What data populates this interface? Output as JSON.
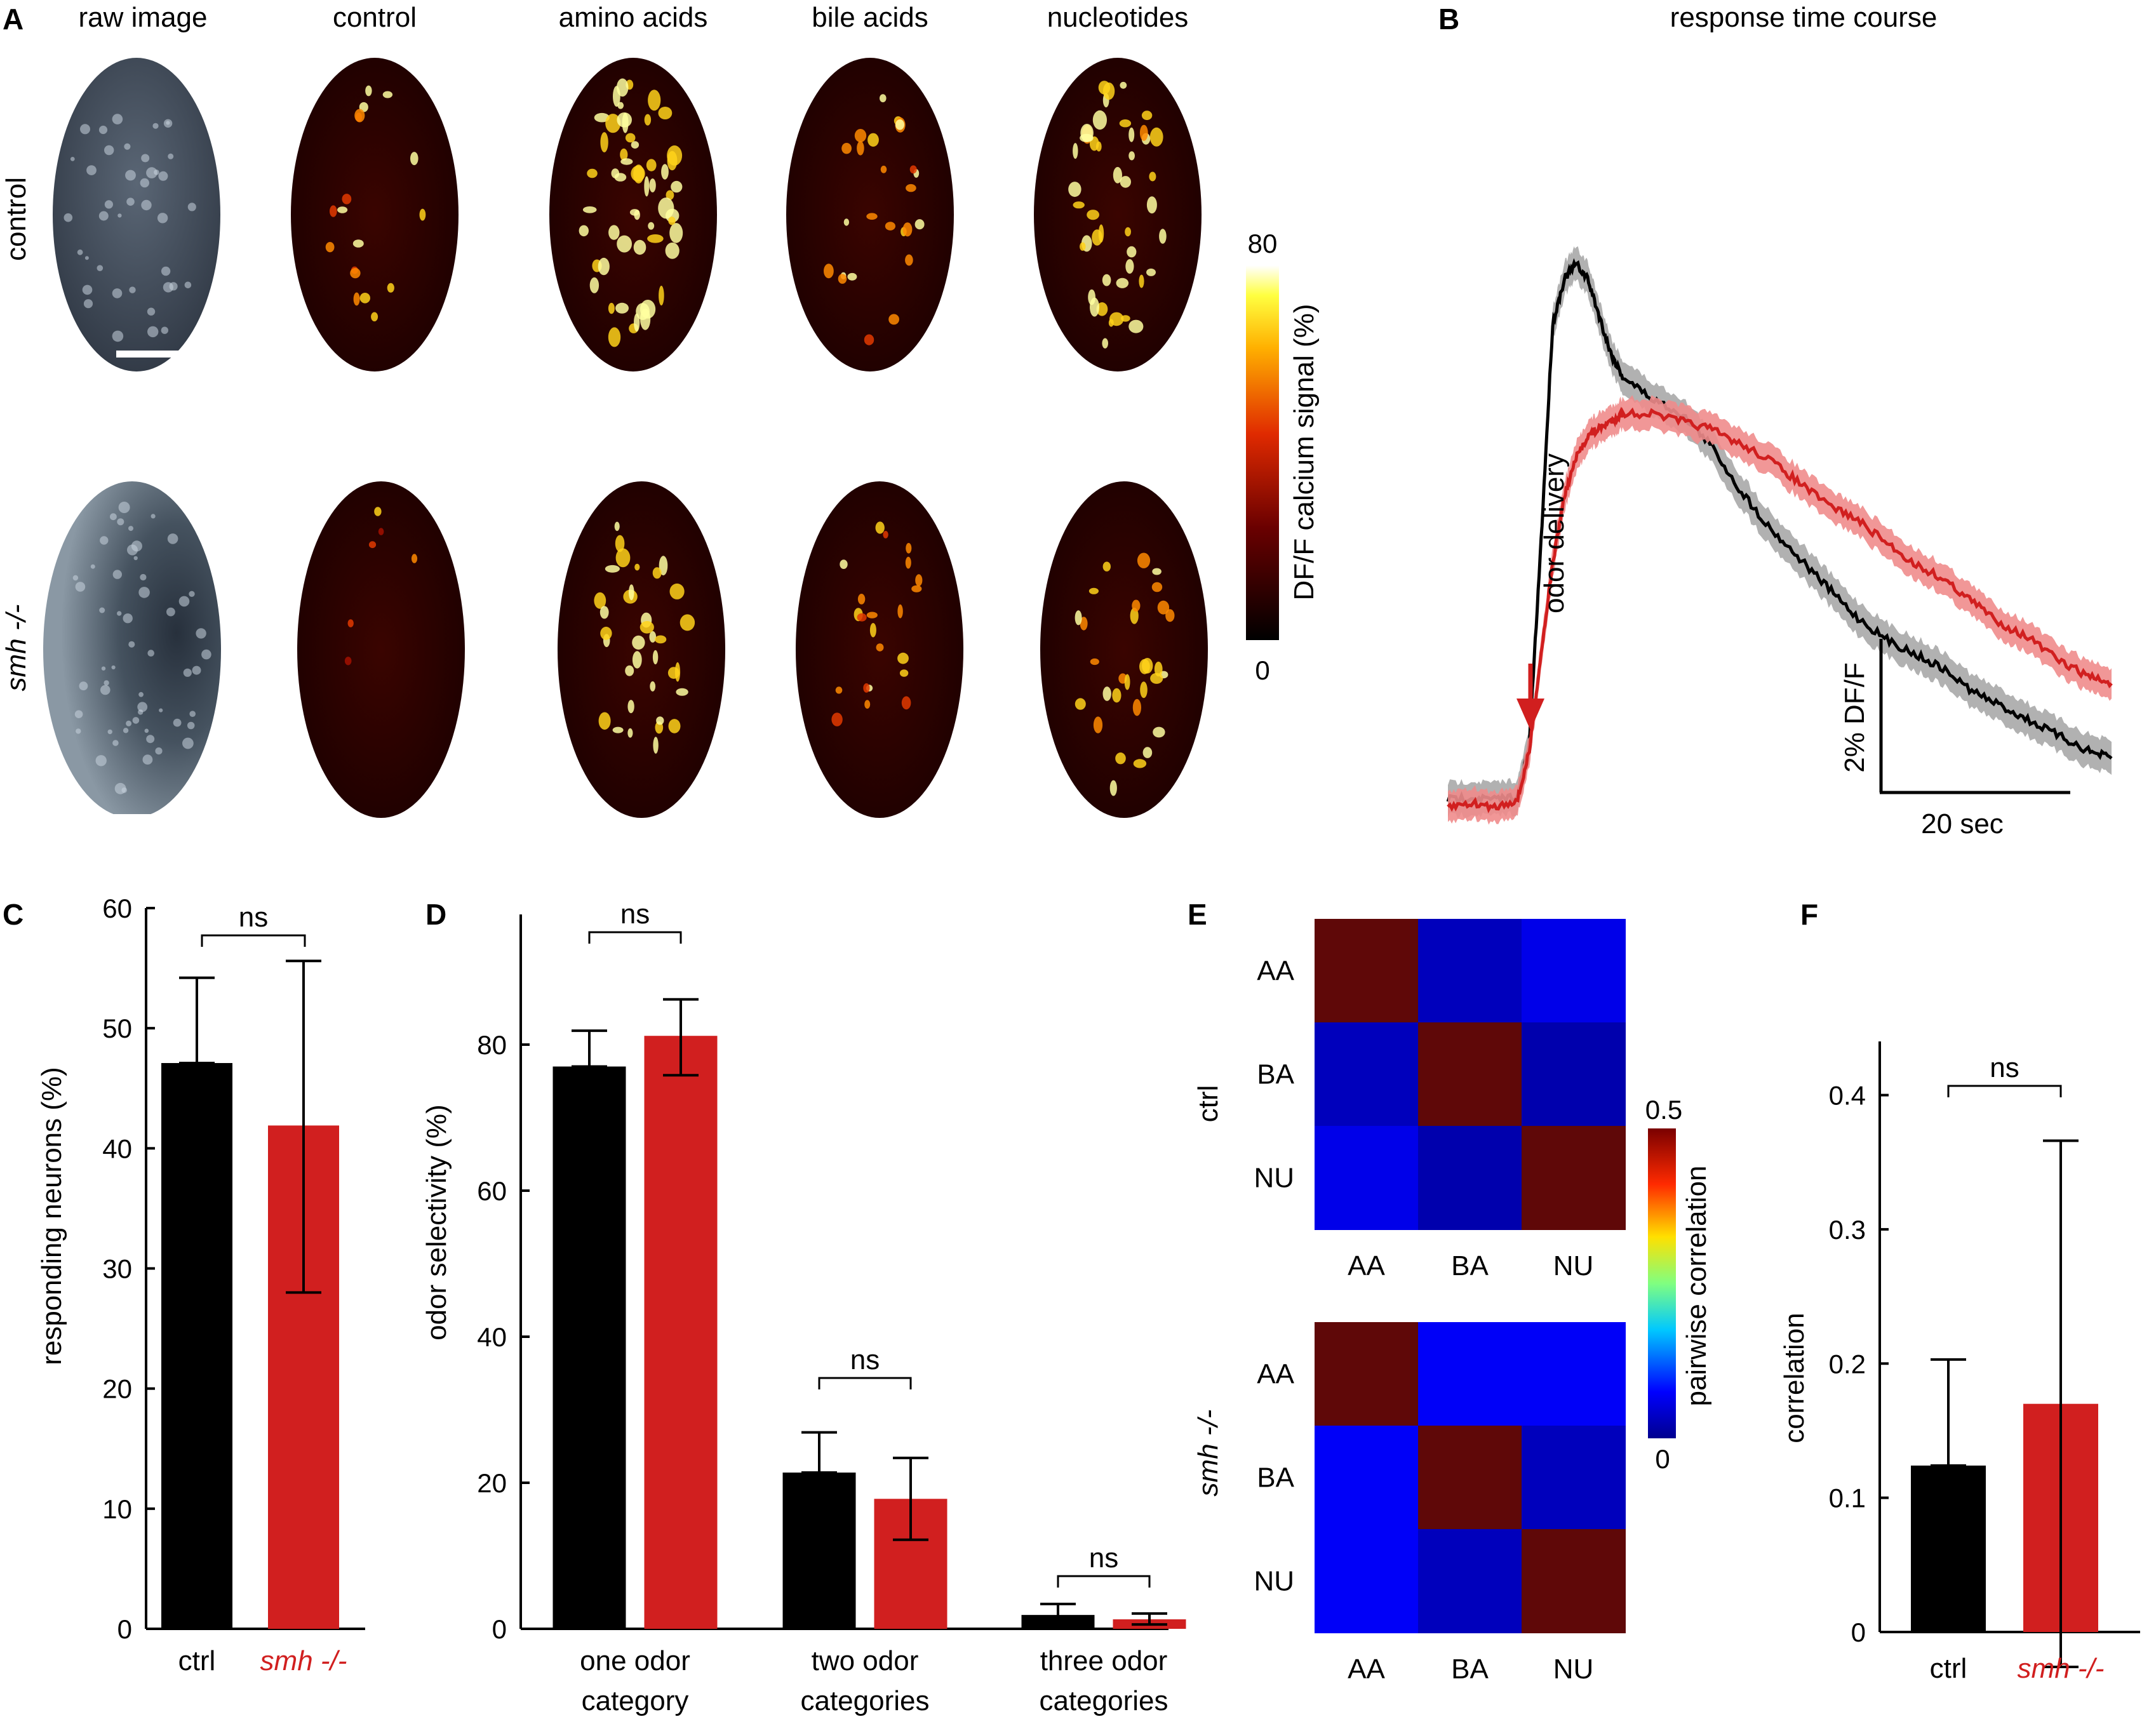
{
  "panel_letters": {
    "A": "A",
    "B": "B",
    "C": "C",
    "D": "D",
    "E": "E",
    "F": "F"
  },
  "panelA": {
    "columns": [
      "raw image",
      "control",
      "amino acids",
      "bile acids",
      "nucleotides"
    ],
    "rows": [
      "control",
      "smh -/-"
    ],
    "colorbar": {
      "label": "DF/F calcium signal (%)",
      "max": "80",
      "min": "0"
    }
  },
  "colors": {
    "control": "#000000",
    "mutant": "#d11f1f",
    "mutant_band": "#f08c8c",
    "control_band": "#a8a8a8"
  },
  "chart_data": [
    {
      "panel": "B",
      "type": "line",
      "title": "response time course",
      "annotation": "odor delivery",
      "scalebar": {
        "y": "2% DF/F",
        "x": "20 sec"
      },
      "x": [
        0,
        4,
        8,
        12,
        14,
        16,
        18,
        20,
        22,
        24,
        26,
        28,
        30,
        35,
        40,
        45,
        50,
        55,
        60,
        65,
        70,
        75,
        80,
        85,
        90,
        95,
        100,
        105,
        110,
        114
      ],
      "series": [
        {
          "key": "control",
          "values": [
            0.05,
            0.08,
            0.05,
            0.1,
            0.8,
            3.5,
            6.4,
            7.0,
            7.2,
            7.0,
            6.5,
            6.0,
            5.7,
            5.4,
            5.2,
            4.8,
            4.2,
            3.7,
            3.3,
            2.9,
            2.5,
            2.2,
            2.0,
            1.8,
            1.5,
            1.3,
            1.1,
            0.9,
            0.7,
            0.6
          ]
        },
        {
          "key": "mutant",
          "values": [
            -0.05,
            0.0,
            -0.05,
            0.05,
            0.7,
            2.0,
            3.2,
            4.1,
            4.6,
            4.9,
            5.0,
            5.1,
            5.2,
            5.2,
            5.1,
            5.0,
            4.8,
            4.6,
            4.3,
            4.0,
            3.8,
            3.5,
            3.2,
            3.0,
            2.7,
            2.4,
            2.2,
            1.9,
            1.7,
            1.6
          ]
        }
      ]
    },
    {
      "panel": "C",
      "type": "bar",
      "ylabel": "responding neurons (%)",
      "ylim": [
        0,
        60
      ],
      "yticks": [
        "0",
        "10",
        "20",
        "30",
        "40",
        "50",
        "60"
      ],
      "categories": [
        "ctrl",
        "smh -/-"
      ],
      "values": [
        47.1,
        41.9
      ],
      "err_hi": [
        54.2,
        55.6
      ],
      "err_lo": [
        47.1,
        28.0
      ],
      "sig": "ns"
    },
    {
      "panel": "D",
      "type": "bar",
      "ylabel": "odor selectivity (%)",
      "ylim": [
        0,
        90
      ],
      "yticks": [
        "0",
        "20",
        "40",
        "60",
        "80"
      ],
      "categories": [
        "one odor\ncategory",
        "two odor\ncategories",
        "three odor\ncategories"
      ],
      "series": [
        {
          "key": "ctrl",
          "values": [
            77.0,
            21.4,
            1.9
          ],
          "err_hi": [
            81.9,
            26.9,
            3.4
          ],
          "err_lo": [
            77.0,
            21.4,
            0.8
          ]
        },
        {
          "key": "smh",
          "values": [
            81.2,
            17.8,
            1.3
          ],
          "err_hi": [
            86.2,
            23.4,
            2.1
          ],
          "err_lo": [
            75.8,
            12.2,
            0.6
          ]
        }
      ],
      "sig": [
        "ns",
        "ns",
        "ns"
      ]
    },
    {
      "panel": "E",
      "type": "heatmap",
      "labels": [
        "AA",
        "BA",
        "NU"
      ],
      "rowlabels": [
        "ctrl",
        "smh -/-"
      ],
      "matrices": [
        [
          [
            0.5,
            0.03,
            0.06
          ],
          [
            0.03,
            0.5,
            0.02
          ],
          [
            0.06,
            0.02,
            0.5
          ]
        ],
        [
          [
            0.5,
            0.07,
            0.07
          ],
          [
            0.07,
            0.5,
            0.03
          ],
          [
            0.07,
            0.03,
            0.5
          ]
        ]
      ],
      "colorbar": {
        "label": "pairwise correlation",
        "max": "0.5",
        "min": "0"
      }
    },
    {
      "panel": "F",
      "type": "bar",
      "ylabel": "correlation",
      "ylim": [
        0,
        0.44
      ],
      "yticks": [
        "0",
        "0.1",
        "0.2",
        "0.3",
        "0.4"
      ],
      "categories": [
        "ctrl",
        "smh -/-"
      ],
      "values": [
        0.124,
        0.17
      ],
      "err_hi": [
        0.203,
        0.366
      ],
      "err_lo": [
        0.124,
        -0.026
      ],
      "sig": "ns"
    }
  ]
}
